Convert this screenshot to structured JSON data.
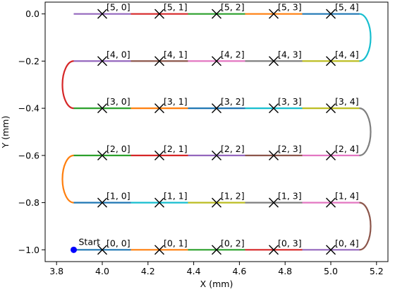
{
  "chart_data": {
    "type": "line",
    "xlabel": "X (mm)",
    "ylabel": "Y (mm)",
    "xlim": [
      3.75,
      5.25
    ],
    "ylim": [
      -1.05,
      0.05
    ],
    "xticks": [
      3.8,
      4.0,
      4.2,
      4.4,
      4.6,
      4.8,
      5.0,
      5.2
    ],
    "xtick_labels": [
      "3.8",
      "4.0",
      "4.2",
      "4.4",
      "4.6",
      "4.8",
      "5.0",
      "5.2"
    ],
    "yticks": [
      0.0,
      -0.2,
      -0.4,
      -0.6,
      -0.8,
      -1.0
    ],
    "ytick_labels": [
      "0.0",
      "−0.2",
      "−0.4",
      "−0.6",
      "−0.8",
      "−1.0"
    ],
    "grid": false,
    "start": {
      "x": 3.875,
      "y": -1.0,
      "label": "Start",
      "color": "#0000ff"
    },
    "points": [
      {
        "x": 4.0,
        "y": -1.0,
        "label": "[0, 0]"
      },
      {
        "x": 4.25,
        "y": -1.0,
        "label": "[0, 1]"
      },
      {
        "x": 4.5,
        "y": -1.0,
        "label": "[0, 2]"
      },
      {
        "x": 4.75,
        "y": -1.0,
        "label": "[0, 3]"
      },
      {
        "x": 5.0,
        "y": -1.0,
        "label": "[0, 4]"
      },
      {
        "x": 4.0,
        "y": -0.8,
        "label": "[1, 0]"
      },
      {
        "x": 4.25,
        "y": -0.8,
        "label": "[1, 1]"
      },
      {
        "x": 4.5,
        "y": -0.8,
        "label": "[1, 2]"
      },
      {
        "x": 4.75,
        "y": -0.8,
        "label": "[1, 3]"
      },
      {
        "x": 5.0,
        "y": -0.8,
        "label": "[1, 4]"
      },
      {
        "x": 4.0,
        "y": -0.6,
        "label": "[2, 0]"
      },
      {
        "x": 4.25,
        "y": -0.6,
        "label": "[2, 1]"
      },
      {
        "x": 4.5,
        "y": -0.6,
        "label": "[2, 2]"
      },
      {
        "x": 4.75,
        "y": -0.6,
        "label": "[2, 3]"
      },
      {
        "x": 5.0,
        "y": -0.6,
        "label": "[2, 4]"
      },
      {
        "x": 4.0,
        "y": -0.4,
        "label": "[3, 0]"
      },
      {
        "x": 4.25,
        "y": -0.4,
        "label": "[3, 1]"
      },
      {
        "x": 4.5,
        "y": -0.4,
        "label": "[3, 2]"
      },
      {
        "x": 4.75,
        "y": -0.4,
        "label": "[3, 3]"
      },
      {
        "x": 5.0,
        "y": -0.4,
        "label": "[3, 4]"
      },
      {
        "x": 4.0,
        "y": -0.2,
        "label": "[4, 0]"
      },
      {
        "x": 4.25,
        "y": -0.2,
        "label": "[4, 1]"
      },
      {
        "x": 4.5,
        "y": -0.2,
        "label": "[4, 2]"
      },
      {
        "x": 4.75,
        "y": -0.2,
        "label": "[4, 3]"
      },
      {
        "x": 5.0,
        "y": -0.2,
        "label": "[4, 4]"
      },
      {
        "x": 4.0,
        "y": 0.0,
        "label": "[5, 0]"
      },
      {
        "x": 4.25,
        "y": 0.0,
        "label": "[5, 1]"
      },
      {
        "x": 4.5,
        "y": 0.0,
        "label": "[5, 2]"
      },
      {
        "x": 4.75,
        "y": 0.0,
        "label": "[5, 3]"
      },
      {
        "x": 5.0,
        "y": 0.0,
        "label": "[5, 4]"
      }
    ],
    "segments": [
      {
        "type": "line",
        "x": [
          3.875,
          4.125
        ],
        "y": [
          -1.0,
          -1.0
        ],
        "color": "#1f77b4"
      },
      {
        "type": "line",
        "x": [
          4.125,
          4.375
        ],
        "y": [
          -1.0,
          -1.0
        ],
        "color": "#ff7f0e"
      },
      {
        "type": "line",
        "x": [
          4.375,
          4.625
        ],
        "y": [
          -1.0,
          -1.0
        ],
        "color": "#2ca02c"
      },
      {
        "type": "line",
        "x": [
          4.625,
          4.875
        ],
        "y": [
          -1.0,
          -1.0
        ],
        "color": "#d62728"
      },
      {
        "type": "line",
        "x": [
          4.875,
          5.125
        ],
        "y": [
          -1.0,
          -1.0
        ],
        "color": "#9467bd"
      },
      {
        "type": "arc",
        "x": 5.125,
        "y_from": -1.0,
        "y_to": -0.8,
        "side": "right",
        "color": "#8c564b"
      },
      {
        "type": "line",
        "x": [
          5.125,
          4.875
        ],
        "y": [
          -0.8,
          -0.8
        ],
        "color": "#e377c2"
      },
      {
        "type": "line",
        "x": [
          4.875,
          4.625
        ],
        "y": [
          -0.8,
          -0.8
        ],
        "color": "#7f7f7f"
      },
      {
        "type": "line",
        "x": [
          4.625,
          4.375
        ],
        "y": [
          -0.8,
          -0.8
        ],
        "color": "#bcbd22"
      },
      {
        "type": "line",
        "x": [
          4.375,
          4.125
        ],
        "y": [
          -0.8,
          -0.8
        ],
        "color": "#17becf"
      },
      {
        "type": "line",
        "x": [
          4.125,
          3.875
        ],
        "y": [
          -0.8,
          -0.8
        ],
        "color": "#1f77b4"
      },
      {
        "type": "arc",
        "x": 3.875,
        "y_from": -0.8,
        "y_to": -0.6,
        "side": "left",
        "color": "#ff7f0e"
      },
      {
        "type": "line",
        "x": [
          3.875,
          4.125
        ],
        "y": [
          -0.6,
          -0.6
        ],
        "color": "#2ca02c"
      },
      {
        "type": "line",
        "x": [
          4.125,
          4.375
        ],
        "y": [
          -0.6,
          -0.6
        ],
        "color": "#d62728"
      },
      {
        "type": "line",
        "x": [
          4.375,
          4.625
        ],
        "y": [
          -0.6,
          -0.6
        ],
        "color": "#9467bd"
      },
      {
        "type": "line",
        "x": [
          4.625,
          4.875
        ],
        "y": [
          -0.6,
          -0.6
        ],
        "color": "#8c564b"
      },
      {
        "type": "line",
        "x": [
          4.875,
          5.125
        ],
        "y": [
          -0.6,
          -0.6
        ],
        "color": "#e377c2"
      },
      {
        "type": "arc",
        "x": 5.125,
        "y_from": -0.6,
        "y_to": -0.4,
        "side": "right",
        "color": "#7f7f7f"
      },
      {
        "type": "line",
        "x": [
          5.125,
          4.875
        ],
        "y": [
          -0.4,
          -0.4
        ],
        "color": "#bcbd22"
      },
      {
        "type": "line",
        "x": [
          4.875,
          4.625
        ],
        "y": [
          -0.4,
          -0.4
        ],
        "color": "#17becf"
      },
      {
        "type": "line",
        "x": [
          4.625,
          4.375
        ],
        "y": [
          -0.4,
          -0.4
        ],
        "color": "#1f77b4"
      },
      {
        "type": "line",
        "x": [
          4.375,
          4.125
        ],
        "y": [
          -0.4,
          -0.4
        ],
        "color": "#ff7f0e"
      },
      {
        "type": "line",
        "x": [
          4.125,
          3.875
        ],
        "y": [
          -0.4,
          -0.4
        ],
        "color": "#2ca02c"
      },
      {
        "type": "arc",
        "x": 3.875,
        "y_from": -0.4,
        "y_to": -0.2,
        "side": "left",
        "color": "#d62728"
      },
      {
        "type": "line",
        "x": [
          3.875,
          4.125
        ],
        "y": [
          -0.2,
          -0.2
        ],
        "color": "#9467bd"
      },
      {
        "type": "line",
        "x": [
          4.125,
          4.375
        ],
        "y": [
          -0.2,
          -0.2
        ],
        "color": "#8c564b"
      },
      {
        "type": "line",
        "x": [
          4.375,
          4.625
        ],
        "y": [
          -0.2,
          -0.2
        ],
        "color": "#e377c2"
      },
      {
        "type": "line",
        "x": [
          4.625,
          4.875
        ],
        "y": [
          -0.2,
          -0.2
        ],
        "color": "#7f7f7f"
      },
      {
        "type": "line",
        "x": [
          4.875,
          5.125
        ],
        "y": [
          -0.2,
          -0.2
        ],
        "color": "#bcbd22"
      },
      {
        "type": "arc",
        "x": 5.125,
        "y_from": -0.2,
        "y_to": 0.0,
        "side": "right",
        "color": "#17becf"
      },
      {
        "type": "line",
        "x": [
          5.125,
          4.875
        ],
        "y": [
          0.0,
          0.0
        ],
        "color": "#1f77b4"
      },
      {
        "type": "line",
        "x": [
          4.875,
          4.625
        ],
        "y": [
          0.0,
          0.0
        ],
        "color": "#ff7f0e"
      },
      {
        "type": "line",
        "x": [
          4.625,
          4.375
        ],
        "y": [
          0.0,
          0.0
        ],
        "color": "#2ca02c"
      },
      {
        "type": "line",
        "x": [
          4.375,
          4.125
        ],
        "y": [
          0.0,
          0.0
        ],
        "color": "#d62728"
      },
      {
        "type": "line",
        "x": [
          4.125,
          3.875
        ],
        "y": [
          0.0,
          0.0
        ],
        "color": "#9467bd"
      }
    ]
  }
}
